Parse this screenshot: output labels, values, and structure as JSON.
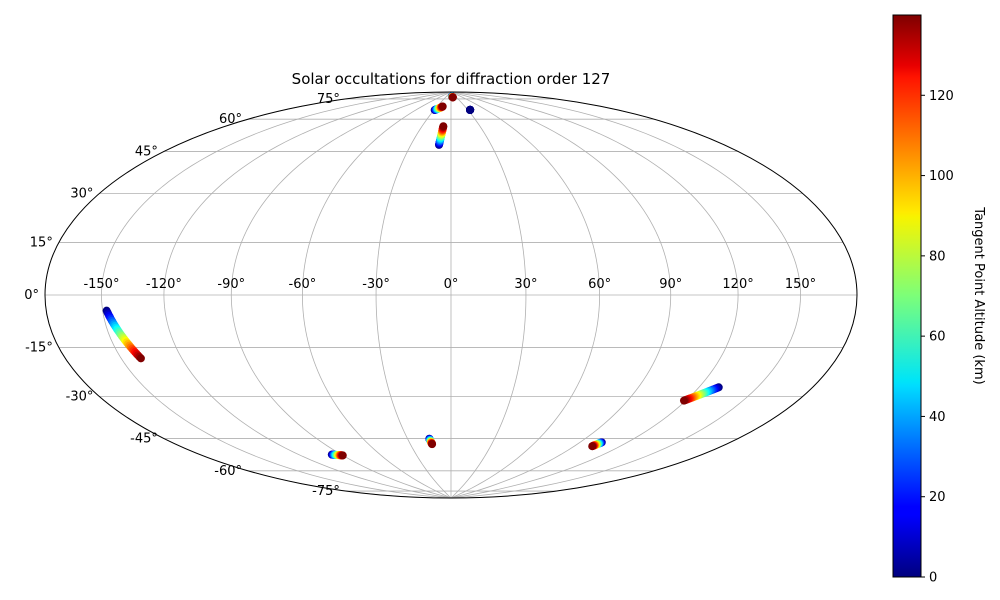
{
  "chart_data": {
    "type": "scatter",
    "projection": "hammer",
    "title": "Solar occultations for diffraction order 127",
    "grid": true,
    "lon_ticks": [
      -150,
      -120,
      -90,
      -60,
      -30,
      0,
      30,
      60,
      90,
      120,
      150
    ],
    "lat_ticks": [
      -75,
      -60,
      -45,
      -30,
      -15,
      0,
      15,
      30,
      45,
      60,
      75
    ],
    "lon_tick_labels": [
      "-150°",
      "-120°",
      "-90°",
      "-60°",
      "-30°",
      "0°",
      "30°",
      "60°",
      "90°",
      "120°",
      "150°"
    ],
    "lat_tick_labels": [
      "-75°",
      "-60°",
      "-45°",
      "-30°",
      "-15°",
      "0°",
      "15°",
      "30°",
      "45°",
      "60°",
      "75°"
    ],
    "colorbar": {
      "label": "Tangent Point Altitude (km)",
      "colormap": "jet",
      "range": [
        0,
        140
      ],
      "ticks": [
        0,
        20,
        40,
        60,
        80,
        100,
        120
      ],
      "tick_labels": [
        "0",
        "20",
        "40",
        "60",
        "80",
        "100",
        "120"
      ],
      "placement": "right"
    },
    "tracks": [
      {
        "lon_start": -148,
        "lat_start": -5,
        "alt_start": 0,
        "lon_end": -140,
        "lat_end": -21,
        "alt_end": 140
      },
      {
        "lon_start": -97,
        "lat_start": -63.5,
        "alt_start": 0,
        "lon_end": -90,
        "lat_end": -64.5,
        "alt_end": 140
      },
      {
        "lon_start": -15,
        "lat_start": -60,
        "alt_start": 0,
        "lon_end": -14,
        "lat_end": -62.5,
        "alt_end": 140
      },
      {
        "lon_start": 130,
        "lat_start": -32,
        "alt_start": 0,
        "lon_end": 119,
        "lat_end": -38,
        "alt_end": 140
      },
      {
        "lon_start": 104,
        "lat_start": -57,
        "alt_start": 0,
        "lon_end": 102,
        "lat_end": -59,
        "alt_end": 140
      },
      {
        "lon_start": -29,
        "lat_start": 80,
        "alt_start": 0,
        "lon_end": -18,
        "lat_end": 82,
        "alt_end": 140
      },
      {
        "lon_start": -9,
        "lat_start": 63,
        "alt_start": 0,
        "lon_end": -8,
        "lat_end": 72,
        "alt_end": 140
      },
      {
        "lon_start": 6,
        "lat_start": 87.5,
        "alt_start": 0,
        "lon_end": 10,
        "lat_end": 87,
        "alt_end": 140
      },
      {
        "lon_start": 34,
        "lat_start": 80,
        "alt_start": 0,
        "lon_end": 34,
        "lat_end": 80,
        "alt_end": 0
      }
    ]
  }
}
